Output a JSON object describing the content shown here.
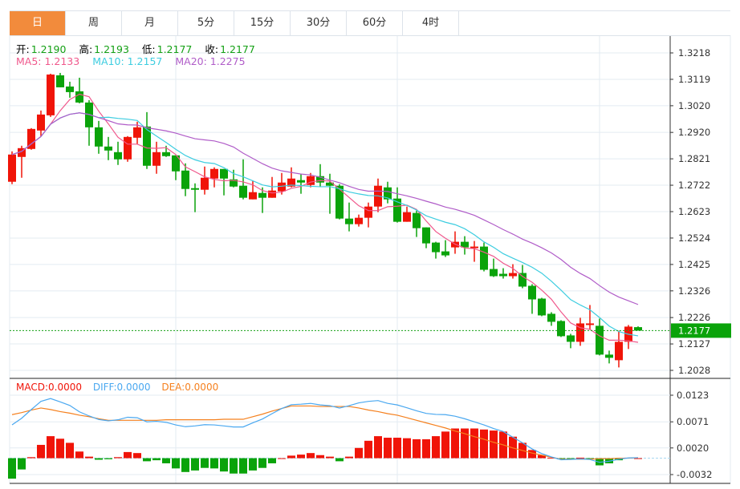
{
  "tabs": [
    {
      "label": "日",
      "active": true
    },
    {
      "label": "周"
    },
    {
      "label": "月"
    },
    {
      "label": "5分"
    },
    {
      "label": "15分"
    },
    {
      "label": "30分"
    },
    {
      "label": "60分"
    },
    {
      "label": "4时"
    }
  ],
  "ohlc_info": {
    "open_label": "开:",
    "open": "1.2190",
    "high_label": "高:",
    "high": "1.2193",
    "low_label": "低:",
    "low": "1.2177",
    "close_label": "收:",
    "close": "1.2177"
  },
  "ma_info": {
    "ma5": "MA5: 1.2133",
    "ma10": "MA10: 1.2157",
    "ma20": "MA20: 1.2275"
  },
  "macd_info": {
    "macd": "MACD:0.0000",
    "diff": "DIFF:0.0000",
    "dea": "DEA:0.0000"
  },
  "colors": {
    "up": "#f01408",
    "down": "#0aa30a",
    "ma5": "#f0588c",
    "ma10": "#3dcde0",
    "ma20": "#b05cc8",
    "diff": "#4aa8f0",
    "dea": "#f5801e",
    "accent": "#f28b3c"
  },
  "chart_data": {
    "type": "candlestick",
    "price_axis": {
      "ticks": [
        "1.3218",
        "1.3119",
        "1.3020",
        "1.2920",
        "1.2821",
        "1.2722",
        "1.2623",
        "1.2524",
        "1.2425",
        "1.2326",
        "1.2226",
        "1.2127",
        "1.2028"
      ],
      "ylim": [
        1.2028,
        1.3218
      ]
    },
    "last_price": "1.2177",
    "candles": [
      [
        1.2735,
        1.2849,
        1.2726,
        1.2837
      ],
      [
        1.2828,
        1.287,
        1.275,
        1.2861
      ],
      [
        1.2858,
        1.2936,
        1.2855,
        1.2933
      ],
      [
        1.2927,
        1.3002,
        1.2906,
        1.2987
      ],
      [
        1.2984,
        1.314,
        1.2978,
        1.3137
      ],
      [
        1.3134,
        1.3143,
        1.3089,
        1.3089
      ],
      [
        1.3092,
        1.311,
        1.305,
        1.3071
      ],
      [
        1.3074,
        1.3125,
        1.3029,
        1.3032
      ],
      [
        1.3032,
        1.3041,
        1.287,
        1.2939
      ],
      [
        1.2939,
        1.2963,
        1.284,
        1.2867
      ],
      [
        1.2867,
        1.2903,
        1.2816,
        1.2852
      ],
      [
        1.2846,
        1.2885,
        1.2798,
        1.2819
      ],
      [
        1.2819,
        1.2906,
        1.281,
        1.2903
      ],
      [
        1.29,
        1.296,
        1.2876,
        1.2939
      ],
      [
        1.2942,
        1.2996,
        1.2783,
        1.2795
      ],
      [
        1.2795,
        1.2885,
        1.2765,
        1.2846
      ],
      [
        1.2846,
        1.287,
        1.2828,
        1.2831
      ],
      [
        1.2834,
        1.2834,
        1.2741,
        1.2774
      ],
      [
        1.2777,
        1.2804,
        1.2681,
        1.2708
      ],
      [
        1.2711,
        1.2729,
        1.2621,
        1.2705
      ],
      [
        1.2705,
        1.2792,
        1.2687,
        1.275
      ],
      [
        1.2747,
        1.2789,
        1.2714,
        1.2783
      ],
      [
        1.2783,
        1.2783,
        1.2684,
        1.2747
      ],
      [
        1.2744,
        1.278,
        1.2714,
        1.2717
      ],
      [
        1.272,
        1.2819,
        1.2669,
        1.2675
      ],
      [
        1.2669,
        1.2738,
        1.2669,
        1.2696
      ],
      [
        1.2693,
        1.2714,
        1.2618,
        1.2675
      ],
      [
        1.2675,
        1.2753,
        1.2675,
        1.2702
      ],
      [
        1.2699,
        1.2768,
        1.2687,
        1.2732
      ],
      [
        1.2717,
        1.2789,
        1.2714,
        1.2747
      ],
      [
        1.2741,
        1.2765,
        1.269,
        1.2732
      ],
      [
        1.2723,
        1.2768,
        1.2714,
        1.2756
      ],
      [
        1.2756,
        1.2801,
        1.2717,
        1.2732
      ],
      [
        1.2732,
        1.2765,
        1.2615,
        1.272
      ],
      [
        1.272,
        1.2726,
        1.2594,
        1.2597
      ],
      [
        1.2597,
        1.2657,
        1.2549,
        1.2576
      ],
      [
        1.2576,
        1.2612,
        1.2567,
        1.26
      ],
      [
        1.26,
        1.2657,
        1.2564,
        1.2642
      ],
      [
        1.2642,
        1.2747,
        1.2621,
        1.272
      ],
      [
        1.2714,
        1.2735,
        1.2654,
        1.2669
      ],
      [
        1.2672,
        1.2714,
        1.2582,
        1.2585
      ],
      [
        1.2585,
        1.2642,
        1.2585,
        1.2621
      ],
      [
        1.2618,
        1.2627,
        1.2528,
        1.2561
      ],
      [
        1.2564,
        1.2564,
        1.2486,
        1.2504
      ],
      [
        1.2507,
        1.251,
        1.2447,
        1.2471
      ],
      [
        1.2474,
        1.2516,
        1.2453,
        1.2459
      ],
      [
        1.2489,
        1.2549,
        1.2465,
        1.251
      ],
      [
        1.251,
        1.2531,
        1.2462,
        1.2489
      ],
      [
        1.2486,
        1.2513,
        1.2435,
        1.2492
      ],
      [
        1.2492,
        1.2507,
        1.2399,
        1.2405
      ],
      [
        1.2408,
        1.2447,
        1.2378,
        1.2381
      ],
      [
        1.239,
        1.2411,
        1.2372,
        1.2381
      ],
      [
        1.2381,
        1.2426,
        1.2372,
        1.2393
      ],
      [
        1.2393,
        1.2423,
        1.2336,
        1.2342
      ],
      [
        1.2345,
        1.2351,
        1.224,
        1.2294
      ],
      [
        1.2297,
        1.23,
        1.2231,
        1.2234
      ],
      [
        1.224,
        1.2246,
        1.2195,
        1.221
      ],
      [
        1.2213,
        1.2216,
        1.2153,
        1.2156
      ],
      [
        1.2159,
        1.2165,
        1.2111,
        1.2135
      ],
      [
        1.2135,
        1.2225,
        1.212,
        1.2204
      ],
      [
        1.2198,
        1.2273,
        1.218,
        1.2204
      ],
      [
        1.2195,
        1.2222,
        1.2084,
        1.2087
      ],
      [
        1.2087,
        1.2102,
        1.2054,
        1.2075
      ],
      [
        1.2066,
        1.2177,
        1.2039,
        1.2135
      ],
      [
        1.2135,
        1.2198,
        1.2108,
        1.2192
      ],
      [
        1.219,
        1.2193,
        1.2177,
        1.2177
      ]
    ],
    "macd": {
      "unit": 0.0001,
      "ticks": [
        "0.0123",
        "0.0071",
        "0.0020",
        "-0.0032"
      ],
      "ylim": [
        -0.0032,
        0.0123
      ],
      "histogram": [
        -40,
        -22,
        2,
        26,
        43,
        38,
        30,
        13,
        3,
        -3,
        -2,
        2,
        12,
        10,
        -6,
        -4,
        -10,
        -20,
        -27,
        -24,
        -19,
        -20,
        -26,
        -30,
        -30,
        -24,
        -19,
        -10,
        0,
        5,
        7,
        10,
        6,
        3,
        -6,
        3,
        20,
        34,
        43,
        40,
        40,
        39,
        37,
        37,
        43,
        52,
        58,
        58,
        58,
        56,
        54,
        52,
        42,
        30,
        16,
        6,
        1,
        -2,
        -1,
        1,
        -1,
        -14,
        -10,
        -4,
        1,
        0
      ],
      "dea": [
        85,
        89,
        94,
        98,
        95,
        91,
        88,
        84,
        81,
        77,
        74,
        74,
        74,
        74,
        74,
        74,
        75,
        75,
        75,
        75,
        75,
        75,
        76,
        76,
        76,
        81,
        86,
        92,
        97,
        102,
        102,
        102,
        101,
        101,
        101,
        101,
        98,
        94,
        91,
        87,
        84,
        79,
        74,
        69,
        64,
        59,
        53,
        48,
        42,
        37,
        31,
        26,
        20,
        15,
        10,
        6,
        2,
        -2,
        -2,
        -2,
        -2,
        -1,
        -1,
        0,
        0,
        1
      ]
    }
  }
}
